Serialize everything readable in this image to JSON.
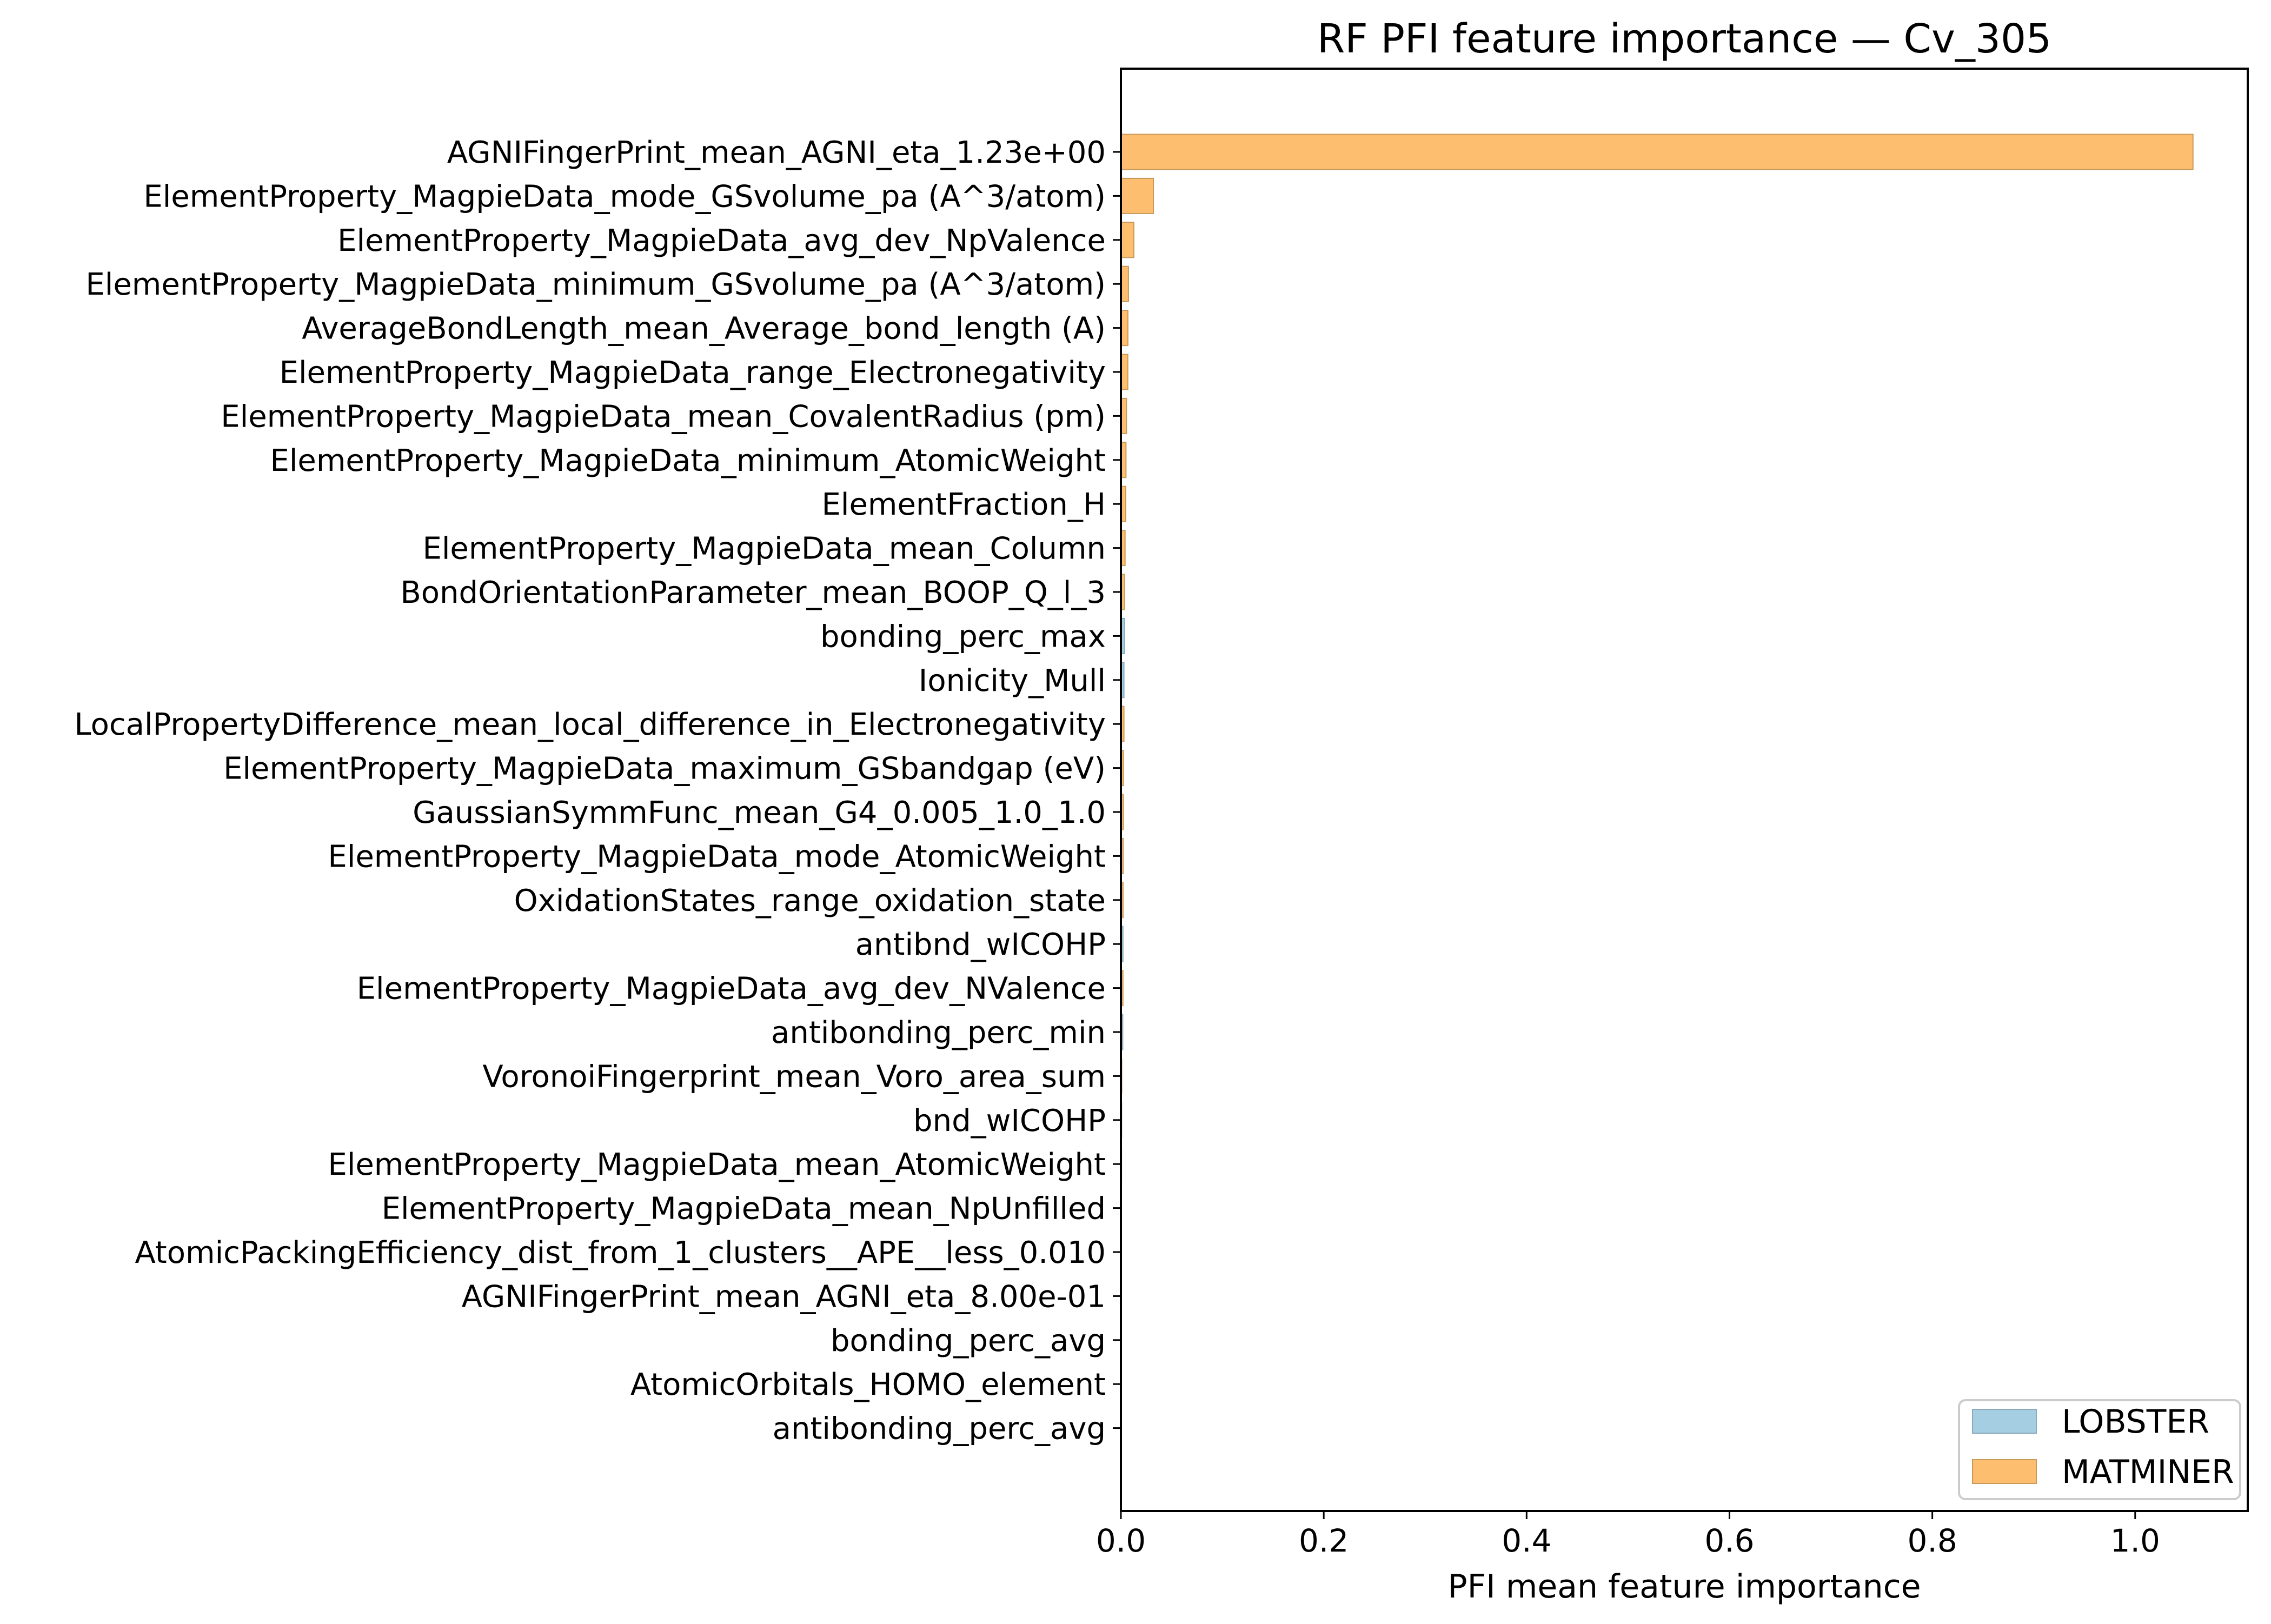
{
  "figure": {
    "title": "RF PFI feature importance — Cv_305",
    "xlabel": "PFI mean feature importance"
  },
  "colors": {
    "LOBSTER": "#a6cee3",
    "MATMINER": "#fdbf6f",
    "edge": "#9a9a9a",
    "axis": "#000000"
  },
  "legend": {
    "position": "lower right",
    "items": [
      {
        "label": "LOBSTER",
        "color": "#a6cee3"
      },
      {
        "label": "MATMINER",
        "color": "#fdbf6f"
      }
    ]
  },
  "chart_data": {
    "type": "bar",
    "orientation": "horizontal",
    "title": "RF PFI feature importance — Cv_305",
    "xlabel": "PFI mean feature importance",
    "ylabel": "",
    "xlim": [
      0,
      1.111
    ],
    "xticks": [
      0.0,
      0.2,
      0.4,
      0.6,
      0.8,
      1.0
    ],
    "xtick_labels": [
      "0.0",
      "0.2",
      "0.4",
      "0.6",
      "0.8",
      "1.0"
    ],
    "grid": false,
    "legend_position": "lower right",
    "series_names": [
      "LOBSTER",
      "MATMINER"
    ],
    "categories": [
      "AGNIFingerPrint_mean_AGNI_eta_1.23e+00",
      "ElementProperty_MagpieData_mode_GSvolume_pa (A^3/atom)",
      "ElementProperty_MagpieData_avg_dev_NpValence",
      "ElementProperty_MagpieData_minimum_GSvolume_pa (A^3/atom)",
      "AverageBondLength_mean_Average_bond_length (A)",
      "ElementProperty_MagpieData_range_Electronegativity",
      "ElementProperty_MagpieData_mean_CovalentRadius (pm)",
      "ElementProperty_MagpieData_minimum_AtomicWeight",
      "ElementFraction_H",
      "ElementProperty_MagpieData_mean_Column",
      "BondOrientationParameter_mean_BOOP_Q_l_3",
      "bonding_perc_max",
      "Ionicity_Mull",
      "LocalPropertyDifference_mean_local_difference_in_Electronegativity",
      "ElementProperty_MagpieData_maximum_GSbandgap (eV)",
      "GaussianSymmFunc_mean_G4_0.005_1.0_1.0",
      "ElementProperty_MagpieData_mode_AtomicWeight",
      "OxidationStates_range_oxidation_state",
      "antibnd_wICOHP",
      "ElementProperty_MagpieData_avg_dev_NValence",
      "antibonding_perc_min",
      "VoronoiFingerprint_mean_Voro_area_sum",
      "bnd_wICOHP",
      "ElementProperty_MagpieData_mean_AtomicWeight",
      "ElementProperty_MagpieData_mean_NpUnfilled",
      "AtomicPackingEfficiency_dist_from_1_clusters__APE__less_0.010",
      "AGNIFingerPrint_mean_AGNI_eta_8.00e-01",
      "bonding_perc_avg",
      "AtomicOrbitals_HOMO_element",
      "antibonding_perc_avg"
    ],
    "values": [
      1.057,
      0.032,
      0.0128,
      0.0074,
      0.0069,
      0.0068,
      0.0055,
      0.005,
      0.0048,
      0.0041,
      0.0036,
      0.0036,
      0.003,
      0.003,
      0.0025,
      0.0024,
      0.0022,
      0.0021,
      0.002,
      0.002,
      0.0018,
      0.0012,
      0.0011,
      0.001,
      0.0009,
      0.0009,
      0.0008,
      0.0007,
      0.0007,
      0.0
    ],
    "sources": [
      "MATMINER",
      "MATMINER",
      "MATMINER",
      "MATMINER",
      "MATMINER",
      "MATMINER",
      "MATMINER",
      "MATMINER",
      "MATMINER",
      "MATMINER",
      "MATMINER",
      "LOBSTER",
      "LOBSTER",
      "MATMINER",
      "MATMINER",
      "MATMINER",
      "MATMINER",
      "MATMINER",
      "LOBSTER",
      "MATMINER",
      "LOBSTER",
      "MATMINER",
      "LOBSTER",
      "MATMINER",
      "MATMINER",
      "MATMINER",
      "MATMINER",
      "LOBSTER",
      "MATMINER",
      "LOBSTER"
    ]
  }
}
